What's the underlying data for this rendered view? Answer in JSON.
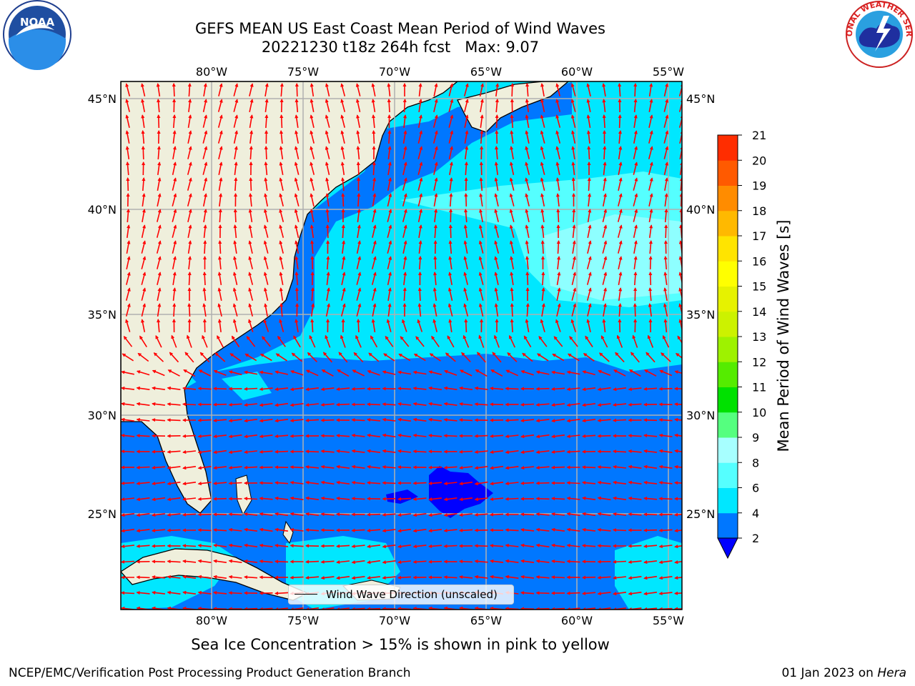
{
  "title": {
    "line1": "GEFS MEAN US East Coast Mean Period of Wind Waves",
    "line2": "20221230 t18z 264h fcst   Max: 9.07"
  },
  "logos": {
    "left": {
      "icon": "noaa-logo-icon",
      "text": "NOAA"
    },
    "right": {
      "icon": "nws-logo-icon",
      "text": "NATIONAL WEATHER SERVICE"
    }
  },
  "map": {
    "projection": "lat-lon",
    "lon_range": [
      -85,
      -54.5
    ],
    "lat_range": [
      20.5,
      46
    ],
    "lon_ticks": [
      "80°W",
      "75°W",
      "70°W",
      "65°W",
      "60°W",
      "55°W"
    ],
    "lat_ticks": [
      "45°N",
      "40°N",
      "35°N",
      "30°N",
      "25°N"
    ],
    "grid": true,
    "land_color": "#efefdc",
    "arrow_color": "#ff0000"
  },
  "legend": {
    "position": "bottom-center",
    "label": "Wind Wave Direction (unscaled)"
  },
  "colorbar": {
    "label": "Mean Period of Wind Waves [s]",
    "ticks": [
      "2",
      "4",
      "6",
      "8",
      "9",
      "10",
      "11",
      "12",
      "13",
      "14",
      "15",
      "16",
      "17",
      "18",
      "19",
      "20",
      "21"
    ],
    "colors": [
      "#0077ff",
      "#00e7ff",
      "#55ffff",
      "#a7ffff",
      "#55ff7f",
      "#00e100",
      "#55ec00",
      "#9ef200",
      "#ccf200",
      "#e6f200",
      "#ffff00",
      "#ffe400",
      "#ffb900",
      "#ff8c00",
      "#ff5a00",
      "#ff2d00",
      "#ff0000"
    ],
    "under_color": "#0000ff",
    "extend": "min"
  },
  "footer": {
    "note": "Sea Ice Concentration > 15% is shown in pink to yellow",
    "left": "NCEP/EMC/Verification Post Processing Product Generation Branch",
    "right_date": "01 Jan 2023 on ",
    "right_host": "Hera"
  }
}
